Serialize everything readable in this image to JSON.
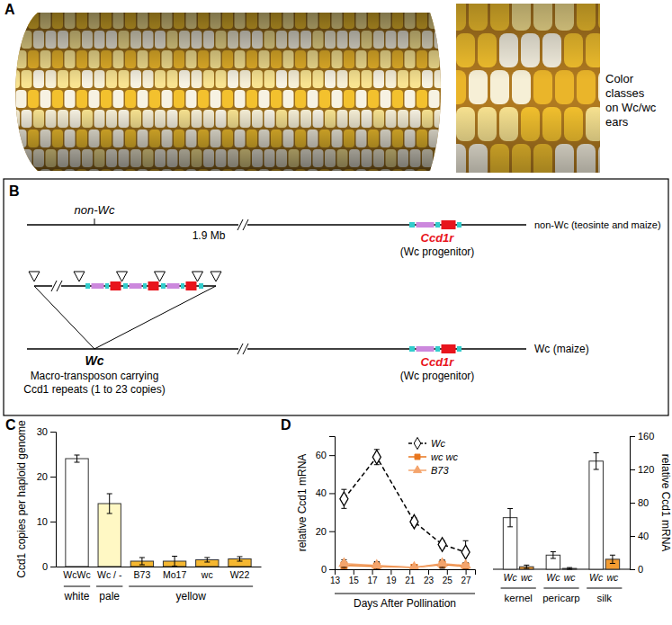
{
  "panel_a": {
    "label": "A",
    "caption": [
      "Color",
      "classes",
      "on Wc/wc",
      "ears"
    ]
  },
  "panel_b": {
    "label": "B",
    "top": {
      "marker": "non-Wc",
      "distance": "1.9 Mb",
      "gene": "Ccd1r",
      "gene_note": "(Wc progenitor)",
      "right_label": "non-Wc (teosinte and maize)"
    },
    "bottom": {
      "marker": "Wc",
      "marker_note": [
        "Macro-transposon carrying",
        "Ccd1 repeats (1 to 23 copies)"
      ],
      "gene": "Ccd1r",
      "gene_note": "(Wc progenitor)",
      "right_label": "Wc  (maize)"
    }
  },
  "chart_data": [
    {
      "panel": "C",
      "type": "bar",
      "y_label": "Ccd1 copies per haploid genome",
      "categories": [
        "WcWc",
        "Wc / -",
        "B73",
        "Mo17",
        "wc",
        "W22"
      ],
      "category_groups": [
        "white",
        "pale",
        "yellow",
        "yellow",
        "yellow",
        "yellow"
      ],
      "values": [
        24,
        14,
        1.2,
        1.2,
        1.5,
        1.7
      ],
      "errors": [
        0.8,
        2.2,
        0.8,
        1.1,
        0.5,
        0.5
      ],
      "colors": [
        "#ffffff",
        "#fff8c4",
        "#f5b730",
        "#f5b730",
        "#f5b730",
        "#f5b730"
      ],
      "ylim": [
        0,
        30
      ],
      "yticks": [
        0,
        10,
        20,
        30
      ]
    },
    {
      "panel": "D",
      "type": "line",
      "x_label": "Days After Pollination",
      "y_label": "relative Ccd1 mRNA",
      "x": [
        14,
        17.5,
        21.5,
        24.5,
        27
      ],
      "xlim": [
        13,
        28
      ],
      "xticks": [
        13,
        15,
        17,
        19,
        21,
        23,
        25,
        27
      ],
      "ylim": [
        0,
        70
      ],
      "yticks": [
        0,
        20,
        40,
        60
      ],
      "legend": "upper right",
      "series": [
        {
          "name": "Wc",
          "color": "#000000",
          "line_style": "dashed",
          "marker": "diamond",
          "values": [
            37,
            59,
            25,
            13,
            9
          ],
          "errors": [
            5,
            4,
            2,
            2,
            6
          ]
        },
        {
          "name": "wc wc",
          "color": "#e8761e",
          "line_style": "solid",
          "marker": "square",
          "values": [
            2,
            1.5,
            1,
            2.5,
            1.5
          ],
          "errors": [
            2,
            2,
            1,
            2,
            1
          ]
        },
        {
          "name": "B73",
          "color": "#f4a46c",
          "line_style": "solid",
          "marker": "triangle",
          "values": [
            3,
            2,
            1,
            3,
            2
          ],
          "errors": [
            2,
            2,
            1,
            2,
            1.5
          ]
        }
      ]
    },
    {
      "type": "bar",
      "y_label": "relative Ccd1 mRNA",
      "categories": [
        "kernel",
        "pericarp",
        "silk"
      ],
      "ylim": [
        0,
        160
      ],
      "yticks": [
        0,
        40,
        80,
        120,
        160
      ],
      "series": [
        {
          "name": "Wc",
          "color": "#ffffff",
          "values": [
            62,
            17,
            130
          ],
          "errors": [
            11,
            4,
            10
          ]
        },
        {
          "name": "wc",
          "color": "#f39c32",
          "values": [
            3,
            1,
            12
          ],
          "errors": [
            2,
            1,
            5
          ]
        }
      ]
    }
  ]
}
